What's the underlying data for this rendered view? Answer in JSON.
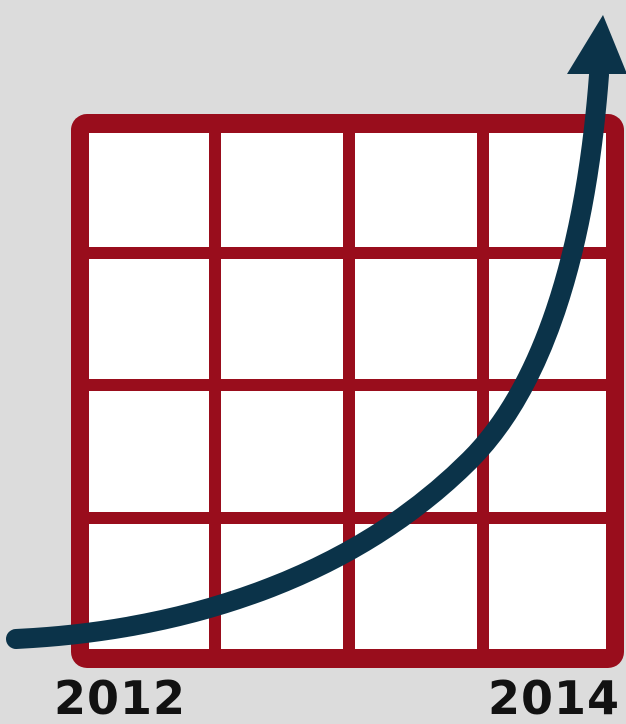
{
  "labels": {
    "start_year": "2012",
    "end_year": "2014"
  },
  "colors": {
    "background": "#dcdcdc",
    "grid": "#990d1c",
    "cell": "#ffffff",
    "arrow": "#0b3349",
    "text": "#121212"
  },
  "grid": {
    "rows": 4,
    "columns": 4
  },
  "icons": {
    "arrow": "upward-growth-arrow"
  }
}
